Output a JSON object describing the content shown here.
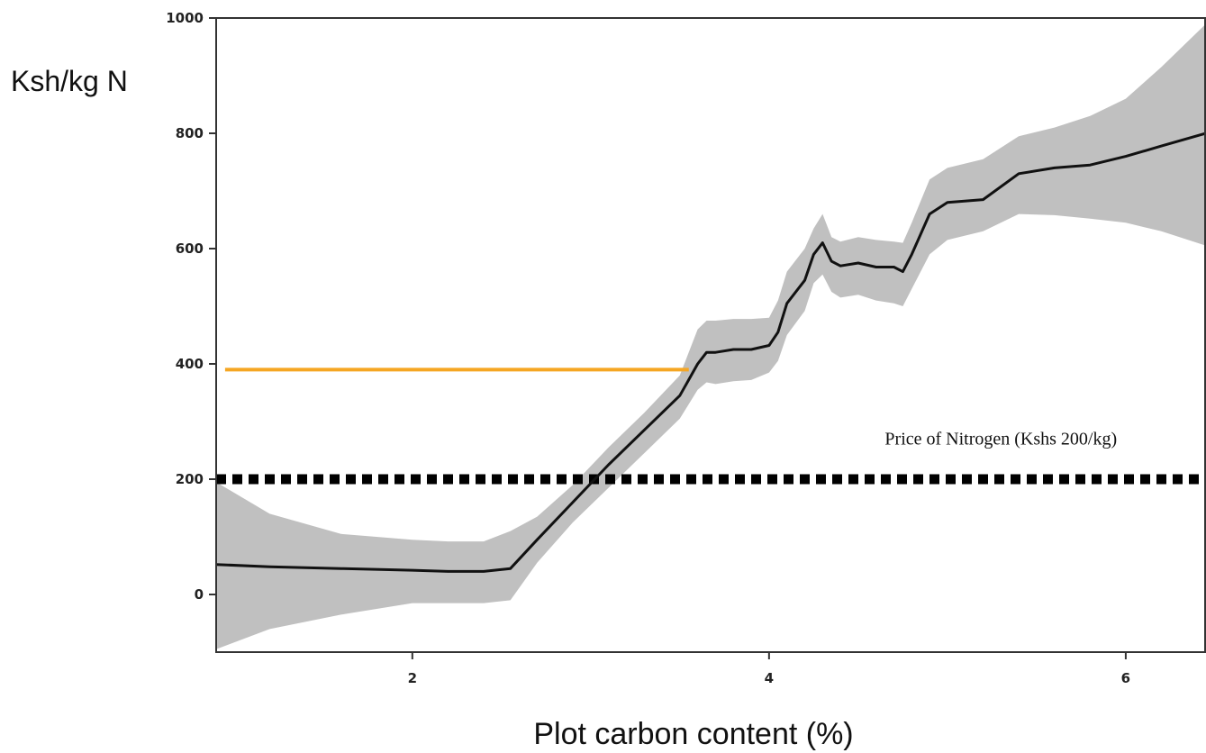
{
  "chart_data": {
    "type": "line",
    "title": "",
    "xlabel": "Plot carbon content (%)",
    "ylabel": "Ksh/kg N",
    "xlim": [
      0.9,
      6.45
    ],
    "ylim": [
      -100,
      1000
    ],
    "xticks": [
      2,
      4,
      6
    ],
    "yticks": [
      0,
      200,
      400,
      600,
      800,
      1000
    ],
    "grid": false,
    "series": [
      {
        "kind": "mean",
        "color": "#111111",
        "x": [
          0.9,
          1.2,
          1.6,
          2.0,
          2.2,
          2.4,
          2.55,
          2.7,
          2.9,
          3.1,
          3.3,
          3.5,
          3.6,
          3.65,
          3.7,
          3.8,
          3.9,
          4.0,
          4.05,
          4.1,
          4.2,
          4.25,
          4.3,
          4.35,
          4.4,
          4.5,
          4.6,
          4.7,
          4.75,
          4.8,
          4.9,
          5.0,
          5.2,
          5.4,
          5.6,
          5.8,
          6.0,
          6.2,
          6.45
        ],
        "y": [
          52,
          48,
          45,
          42,
          40,
          40,
          45,
          95,
          160,
          225,
          285,
          345,
          400,
          420,
          420,
          425,
          425,
          432,
          455,
          505,
          545,
          590,
          610,
          578,
          570,
          575,
          568,
          568,
          560,
          590,
          660,
          680,
          685,
          730,
          740,
          745,
          760,
          778,
          800
        ]
      },
      {
        "kind": "band",
        "color": "#c0c0c0",
        "x": [
          0.9,
          1.2,
          1.6,
          2.0,
          2.2,
          2.4,
          2.55,
          2.7,
          2.9,
          3.1,
          3.3,
          3.5,
          3.6,
          3.65,
          3.7,
          3.8,
          3.9,
          4.0,
          4.05,
          4.1,
          4.2,
          4.25,
          4.3,
          4.35,
          4.4,
          4.5,
          4.6,
          4.7,
          4.75,
          4.8,
          4.9,
          5.0,
          5.2,
          5.4,
          5.6,
          5.8,
          6.0,
          6.2,
          6.45
        ],
        "upper": [
          195,
          140,
          105,
          95,
          92,
          92,
          110,
          135,
          190,
          255,
          315,
          380,
          460,
          475,
          475,
          478,
          478,
          480,
          510,
          560,
          600,
          635,
          660,
          620,
          612,
          620,
          615,
          612,
          610,
          645,
          720,
          740,
          755,
          795,
          810,
          830,
          860,
          915,
          990
        ],
        "lower": [
          -95,
          -60,
          -35,
          -15,
          -15,
          -15,
          -10,
          55,
          125,
          185,
          245,
          305,
          355,
          368,
          365,
          370,
          372,
          385,
          405,
          450,
          492,
          540,
          555,
          525,
          515,
          520,
          510,
          505,
          500,
          530,
          590,
          615,
          630,
          660,
          658,
          652,
          645,
          630,
          605
        ]
      }
    ],
    "reference_lines": [
      {
        "kind": "horizontal",
        "y": 200,
        "x_range": [
          0.9,
          6.45
        ],
        "style": "dotted",
        "color": "#000000"
      },
      {
        "kind": "horizontal",
        "y": 390,
        "x_range": [
          0.95,
          3.55
        ],
        "style": "solid",
        "color": "#f5a623"
      }
    ],
    "annotations": [
      {
        "text": "Price of Nitrogen (Kshs 200/kg)",
        "x": 5.3,
        "y": 260
      }
    ]
  }
}
